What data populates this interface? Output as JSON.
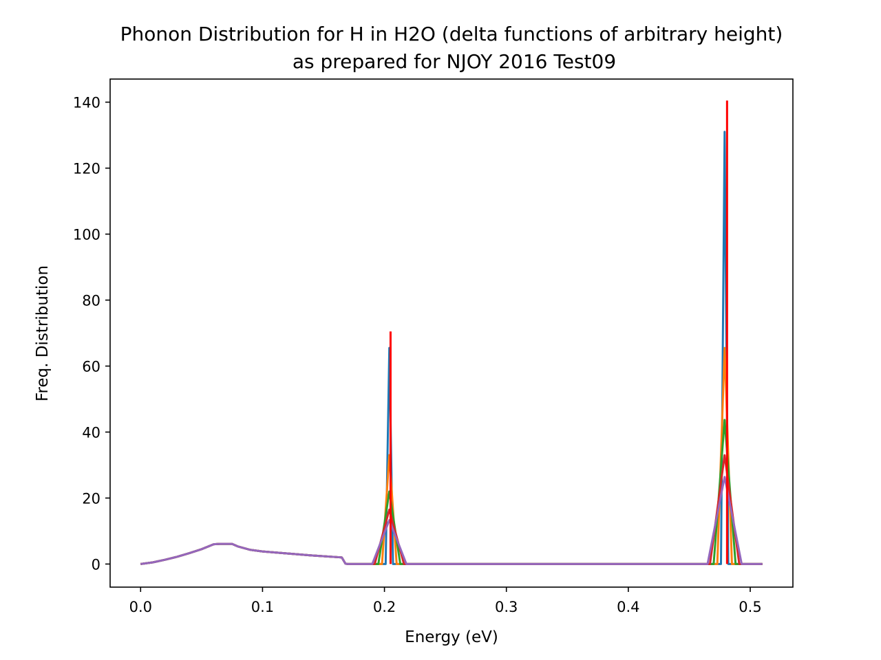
{
  "chart_data": {
    "type": "line",
    "title": "Phonon Distribution for H in H2O (delta functions of arbitrary height)",
    "subtitle": "as prepared for NJOY 2016 Test09",
    "xlabel": "Energy (eV)",
    "ylabel": "Freq. Distribution",
    "xlim": [
      -0.025,
      0.535
    ],
    "ylim": [
      -7,
      147
    ],
    "xticks": [
      0.0,
      0.1,
      0.2,
      0.3,
      0.4,
      0.5
    ],
    "xtick_labels": [
      "0.0",
      "0.1",
      "0.2",
      "0.3",
      "0.4",
      "0.5"
    ],
    "yticks": [
      0,
      20,
      40,
      60,
      80,
      100,
      120,
      140
    ],
    "ytick_labels": [
      "0",
      "20",
      "40",
      "60",
      "80",
      "100",
      "120",
      "140"
    ],
    "grid": false,
    "legend": "none",
    "continuous": {
      "x": [
        0.0,
        0.01,
        0.02,
        0.03,
        0.04,
        0.05,
        0.06,
        0.065,
        0.075,
        0.08,
        0.09,
        0.1,
        0.12,
        0.14,
        0.165,
        0.168,
        0.17,
        0.19
      ],
      "y": [
        0.0,
        0.5,
        1.3,
        2.2,
        3.3,
        4.5,
        6.0,
        6.1,
        6.1,
        5.3,
        4.3,
        3.8,
        3.2,
        2.6,
        2.0,
        0.1,
        0.0,
        0.0
      ]
    },
    "series": [
      {
        "color": "#1f77b4",
        "width": 0.003,
        "peaks": [
          {
            "center": 0.204,
            "height": 65.5
          },
          {
            "center": 0.479,
            "height": 131
          }
        ],
        "order": 1
      },
      {
        "color": "#ff7f0e",
        "width": 0.006,
        "peaks": [
          {
            "center": 0.204,
            "height": 33
          },
          {
            "center": 0.479,
            "height": 65.5
          }
        ],
        "order": 2
      },
      {
        "color": "#2ca02c",
        "width": 0.009,
        "peaks": [
          {
            "center": 0.204,
            "height": 22
          },
          {
            "center": 0.479,
            "height": 43.7
          }
        ],
        "order": 3
      },
      {
        "color": "#d62728",
        "width": 0.012,
        "peaks": [
          {
            "center": 0.204,
            "height": 16.5
          },
          {
            "center": 0.479,
            "height": 33
          }
        ],
        "order": 4
      },
      {
        "color": "#9467bd",
        "width": 0.014,
        "peaks": [
          {
            "center": 0.204,
            "height": 13.3
          },
          {
            "center": 0.479,
            "height": 26.4
          }
        ],
        "order": 6
      }
    ],
    "delta_lines": {
      "color": "#ff0000",
      "peaks": [
        {
          "center": 0.205,
          "height": 70.5
        },
        {
          "center": 0.481,
          "height": 140.5
        }
      ]
    },
    "x_end": 0.51
  }
}
